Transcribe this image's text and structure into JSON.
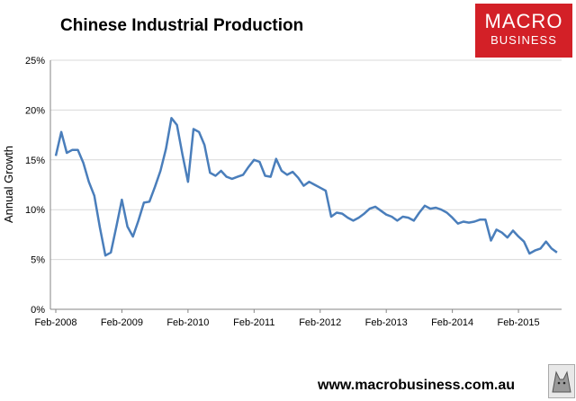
{
  "header": {
    "title": "Chinese Industrial Production"
  },
  "logo": {
    "line1": "MACRO",
    "line2": "BUSINESS",
    "color": "#d32027"
  },
  "footer": {
    "url": "www.macrobusiness.com.au"
  },
  "chart_data": {
    "type": "line",
    "title": "Chinese Industrial Production",
    "xlabel": "",
    "ylabel": "Annual Growth",
    "ylim": [
      0,
      25
    ],
    "yticks": [
      "0%",
      "5%",
      "10%",
      "15%",
      "20%",
      "25%"
    ],
    "xticks": [
      "Feb-2008",
      "Feb-2009",
      "Feb-2010",
      "Feb-2011",
      "Feb-2012",
      "Feb-2013",
      "Feb-2014",
      "Feb-2015"
    ],
    "grid": true,
    "line_color": "#4a7ebb",
    "series": [
      {
        "name": "",
        "start": "Feb-2008",
        "frequency": "monthly",
        "values": [
          15.4,
          17.8,
          15.7,
          16.0,
          16.0,
          14.7,
          12.8,
          11.4,
          8.2,
          5.4,
          5.7,
          8.3,
          11.0,
          8.3,
          7.3,
          8.9,
          10.7,
          10.8,
          12.3,
          13.9,
          16.1,
          19.2,
          18.5,
          15.5,
          12.8,
          18.1,
          17.8,
          16.5,
          13.7,
          13.4,
          13.9,
          13.3,
          13.1,
          13.3,
          13.5,
          14.3,
          15.0,
          14.8,
          13.4,
          13.3,
          15.1,
          13.9,
          13.5,
          13.8,
          13.2,
          12.4,
          12.8,
          12.5,
          12.2,
          11.9,
          9.3,
          9.7,
          9.6,
          9.2,
          8.9,
          9.2,
          9.6,
          10.1,
          10.3,
          9.9,
          9.5,
          9.3,
          8.9,
          9.3,
          9.2,
          8.9,
          9.7,
          10.4,
          10.1,
          10.2,
          10.0,
          9.7,
          9.2,
          8.6,
          8.8,
          8.7,
          8.8,
          9.0,
          9.0,
          6.9,
          8.0,
          7.7,
          7.2,
          7.9,
          7.3,
          6.8,
          5.6,
          5.9,
          6.1,
          6.8,
          6.1,
          5.7
        ]
      }
    ]
  }
}
